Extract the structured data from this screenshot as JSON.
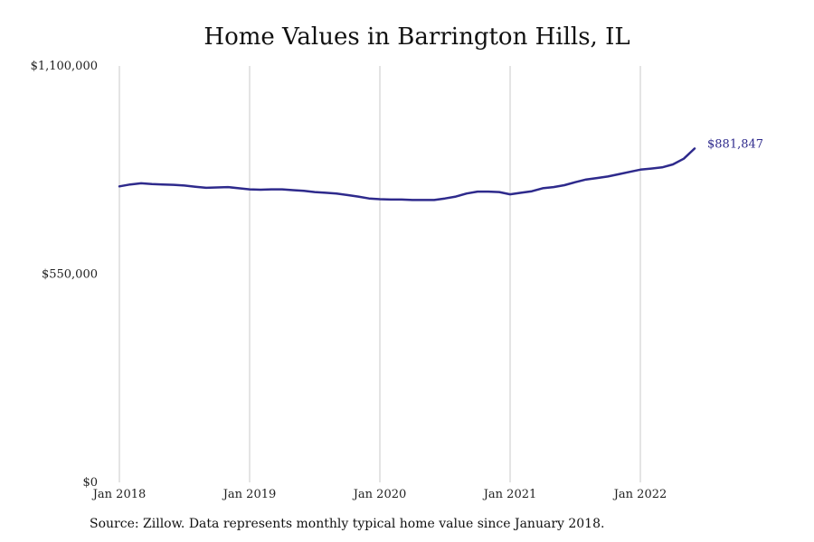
{
  "chart_data": {
    "type": "line",
    "title": "Home Values in Barrington Hills, IL",
    "xlabel": "",
    "ylabel": "",
    "x_ticks": [
      "Jan 2018",
      "Jan 2019",
      "Jan 2020",
      "Jan 2021",
      "Jan 2022"
    ],
    "y_ticks": [
      {
        "value": 1100000,
        "label": "$1,100,000"
      },
      {
        "value": 550000,
        "label": "$550,000"
      },
      {
        "value": 0,
        "label": "$0"
      }
    ],
    "ylim": [
      0,
      1100000
    ],
    "xlim": [
      "2018-01",
      "2022-12"
    ],
    "grid": "vertical",
    "legend": "none",
    "colors": {
      "line": "#2e2a8c",
      "grid": "#c8c8c8",
      "text": "#222222"
    },
    "series": [
      {
        "x": [
          "2018-01",
          "2018-02",
          "2018-03",
          "2018-04",
          "2018-05",
          "2018-06",
          "2018-07",
          "2018-08",
          "2018-09",
          "2018-10",
          "2018-11",
          "2018-12",
          "2019-01",
          "2019-02",
          "2019-03",
          "2019-04",
          "2019-05",
          "2019-06",
          "2019-07",
          "2019-08",
          "2019-09",
          "2019-10",
          "2019-11",
          "2019-12",
          "2020-01",
          "2020-02",
          "2020-03",
          "2020-04",
          "2020-05",
          "2020-06",
          "2020-07",
          "2020-08",
          "2020-09",
          "2020-10",
          "2020-11",
          "2020-12",
          "2021-01",
          "2021-02",
          "2021-03",
          "2021-04",
          "2021-05",
          "2021-06",
          "2021-07",
          "2021-08",
          "2021-09",
          "2021-10",
          "2021-11",
          "2021-12",
          "2022-01",
          "2022-02",
          "2022-03",
          "2022-04",
          "2022-05",
          "2022-06"
        ],
        "values": [
          782000,
          787000,
          790000,
          788000,
          787000,
          786000,
          784000,
          781000,
          778000,
          779000,
          780000,
          777000,
          774000,
          773000,
          774000,
          774000,
          772000,
          770000,
          767000,
          765000,
          763000,
          759000,
          755000,
          750000,
          748000,
          747000,
          747000,
          746000,
          746000,
          746000,
          750000,
          755000,
          763000,
          768000,
          768000,
          767000,
          761000,
          765000,
          769000,
          777000,
          780000,
          785000,
          793000,
          800000,
          804000,
          808000,
          814000,
          820000,
          826000,
          829000,
          832000,
          840000,
          855000,
          881847
        ]
      }
    ],
    "end_label": "$881,847"
  },
  "source_note": "Source: Zillow. Data represents monthly typical home value since January 2018."
}
